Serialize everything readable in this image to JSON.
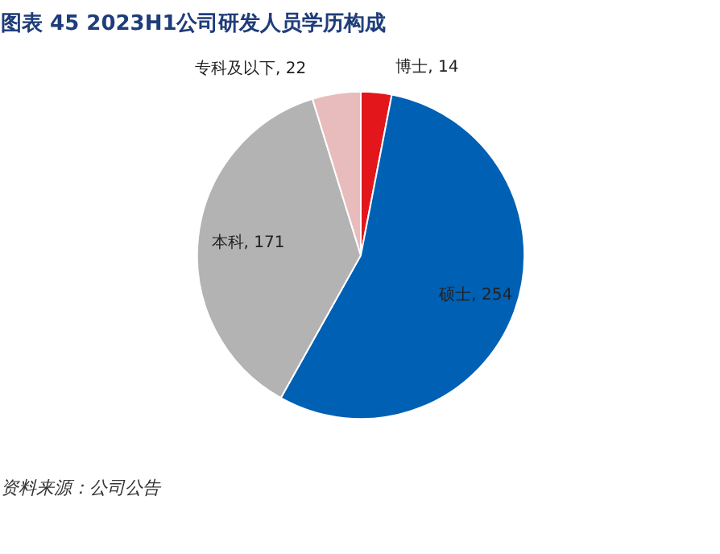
{
  "chart_data": {
    "type": "pie",
    "title": "图表 45   2023H1公司研发人员学历构成",
    "categories": [
      "博士",
      "硕士",
      "本科",
      "专科及以下"
    ],
    "values": [
      14,
      254,
      171,
      22
    ],
    "colors": [
      "#e3161b",
      "#0060b4",
      "#b3b3b3",
      "#e8bcbc"
    ],
    "value_labels": [
      ", 14",
      ", 254",
      ", 171",
      ", 22"
    ],
    "annotations": [
      "资料来源：公司公告"
    ]
  }
}
